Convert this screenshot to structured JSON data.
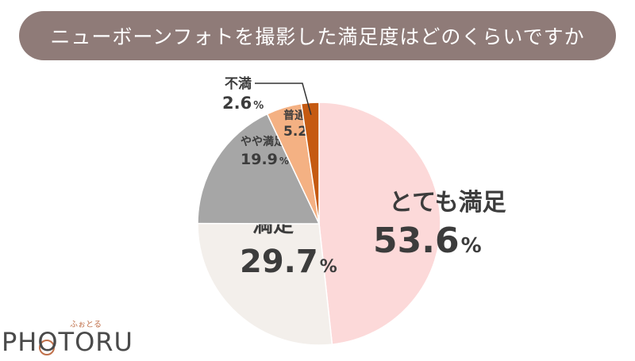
{
  "title": "ニューボーンフォトを撮影した満足度はどのくらいですか",
  "chart_data": {
    "type": "pie",
    "start": "top",
    "direction": "clockwise",
    "unit": "%",
    "slices": [
      {
        "label": "とても満足",
        "value": 53.6,
        "value_text": "53.6",
        "color": "#fcd9d9"
      },
      {
        "label": "満足",
        "value": 29.7,
        "value_text": "29.7",
        "color": "#f3efeb"
      },
      {
        "label": "やや満足",
        "value": 19.9,
        "value_text": "19.9",
        "color": "#a6a6a6"
      },
      {
        "label": "普通",
        "value": 5.2,
        "value_text": "5.2",
        "color": "#f4b183"
      },
      {
        "label": "不満",
        "value": 2.6,
        "value_text": "2.6",
        "color": "#c55a11"
      }
    ]
  },
  "logo": {
    "text": "PHOTORU",
    "kana": "ふぉとる"
  }
}
